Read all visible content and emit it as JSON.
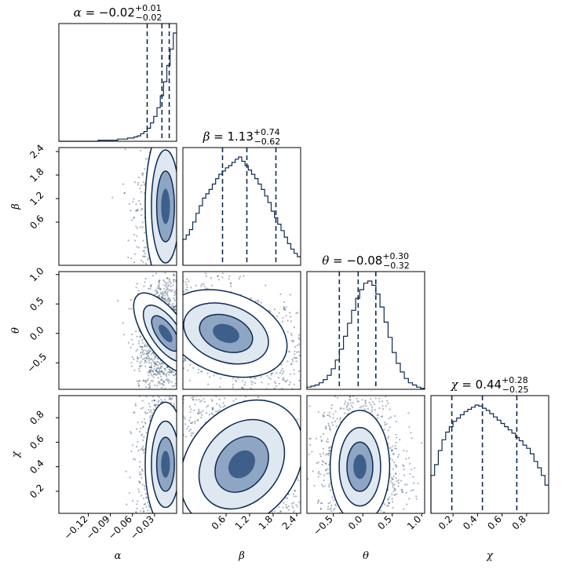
{
  "chart_data": {
    "type": "corner",
    "parameters": [
      {
        "symbol": "α",
        "median": "−0.02",
        "plus": "+0.01",
        "minus": "−0.02",
        "quantiles": [
          -0.04,
          -0.02,
          -0.01
        ],
        "range": [
          -0.16,
          0.0
        ],
        "ticks": [
          -0.12,
          -0.09,
          -0.06,
          -0.03
        ],
        "tick_labels": [
          "−0.12",
          "−0.09",
          "−0.06",
          "−0.03"
        ]
      },
      {
        "symbol": "β",
        "median": "1.13",
        "plus": "+0.74",
        "minus": "−0.62",
        "quantiles": [
          0.51,
          1.13,
          1.87
        ],
        "range": [
          -0.5,
          2.5
        ],
        "ticks": [
          0.6,
          1.2,
          1.8,
          2.4
        ],
        "tick_labels": [
          "0.6",
          "1.2",
          "1.8",
          "2.4"
        ]
      },
      {
        "symbol": "θ",
        "median": "−0.08",
        "plus": "+0.30",
        "minus": "−0.32",
        "quantiles": [
          -0.4,
          -0.08,
          0.22
        ],
        "range": [
          -0.95,
          1.05
        ],
        "ticks": [
          -0.5,
          0.0,
          0.5,
          1.0
        ],
        "tick_labels": [
          "−0.5",
          "0.0",
          "0.5",
          "1.0"
        ]
      },
      {
        "symbol": "χ",
        "median": "0.44",
        "plus": "+0.28",
        "minus": "−0.25",
        "quantiles": [
          0.19,
          0.44,
          0.72
        ],
        "range": [
          0.02,
          0.98
        ],
        "ticks": [
          0.2,
          0.4,
          0.6,
          0.8
        ],
        "tick_labels": [
          "0.2",
          "0.4",
          "0.6",
          "0.8"
        ]
      }
    ],
    "histograms": [
      [
        0,
        0,
        0,
        0,
        0,
        0,
        0,
        0,
        0,
        0,
        0,
        0,
        1,
        1,
        1,
        1,
        1,
        1,
        2,
        2,
        2,
        3,
        3,
        4,
        5,
        7,
        9,
        12,
        17,
        23,
        31,
        42,
        55,
        70,
        85,
        100
      ],
      [
        24,
        28,
        33,
        40,
        48,
        55,
        62,
        66,
        70,
        75,
        80,
        84,
        87,
        90,
        92,
        95,
        98,
        100,
        96,
        92,
        88,
        84,
        80,
        75,
        70,
        64,
        58,
        50,
        44,
        38,
        32,
        26,
        20,
        15,
        11,
        8
      ],
      [
        2,
        3,
        4,
        6,
        9,
        13,
        19,
        27,
        37,
        49,
        61,
        73,
        84,
        92,
        98,
        100,
        96,
        88,
        76,
        62,
        48,
        34,
        24,
        16,
        10,
        6,
        4,
        2,
        1
      ],
      [
        35,
        45,
        58,
        68,
        75,
        80,
        85,
        88,
        91,
        94,
        96,
        98,
        100,
        99,
        97,
        95,
        92,
        89,
        86,
        83,
        80,
        77,
        74,
        70,
        67,
        63,
        60,
        55,
        48,
        42,
        35,
        26
      ]
    ],
    "pair_means": {
      "alpha_beta": [
        -0.015,
        1.0
      ],
      "alpha_theta": [
        -0.015,
        0.0
      ],
      "alpha_chi": [
        -0.015,
        0.42
      ],
      "beta_theta": [
        0.6,
        0.0
      ],
      "beta_chi": [
        1.0,
        0.42
      ],
      "theta_chi": [
        -0.05,
        0.4
      ]
    },
    "color": "#0d2b52",
    "quantile_line_style": "dashed",
    "levels": 3
  }
}
